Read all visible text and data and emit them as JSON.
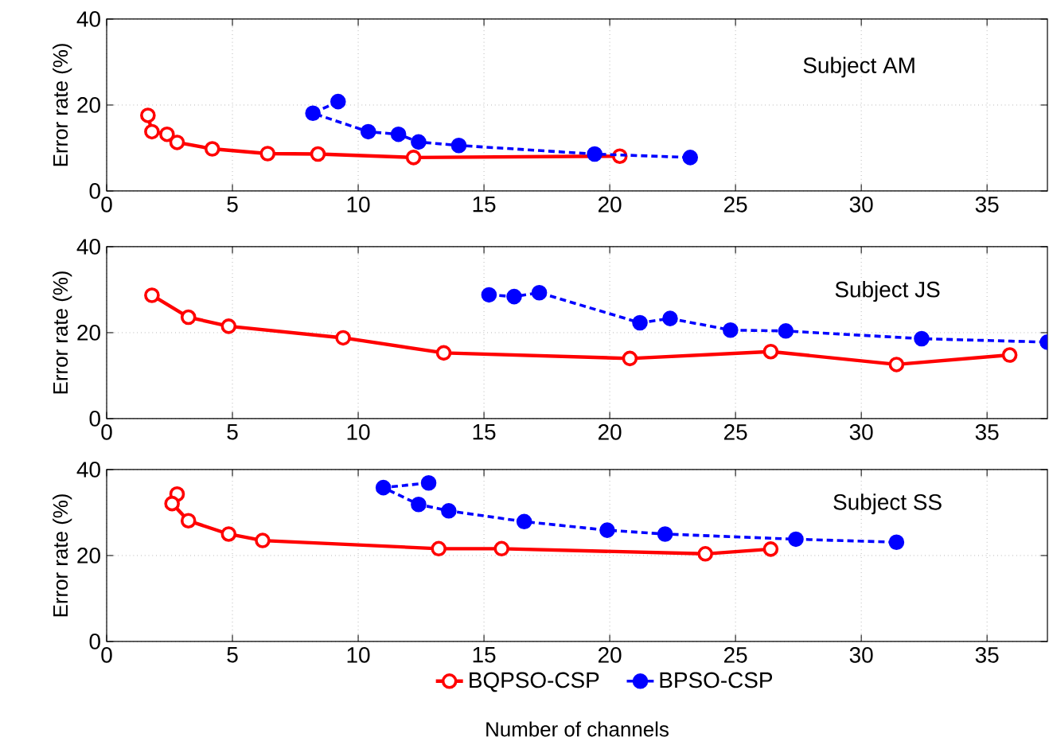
{
  "chart_data": [
    {
      "type": "line",
      "ylabel": "Error rate (%)",
      "annotations": [
        "Subject AM"
      ],
      "xlim": [
        0,
        37.4
      ],
      "ylim": [
        0,
        40
      ],
      "xticks": [
        0,
        5,
        10,
        15,
        20,
        25,
        30,
        35
      ],
      "yticks": [
        0,
        20,
        40
      ],
      "grid": true,
      "marker": "circle",
      "series": [
        {
          "color": "#ff0000",
          "line_style": "solid",
          "x": [
            1.64,
            1.8,
            2.4,
            2.8,
            4.2,
            6.4,
            8.4,
            12.2,
            20.4
          ],
          "values": [
            17.6,
            13.8,
            13.2,
            11.3,
            9.8,
            8.7,
            8.6,
            7.8,
            8.1
          ]
        },
        {
          "color": "#0000ff",
          "line_style": "dashed",
          "x": [
            9.2,
            8.2,
            10.4,
            11.6,
            12.4,
            14.0,
            19.4,
            23.2
          ],
          "values": [
            20.8,
            18.1,
            13.8,
            13.2,
            11.4,
            10.6,
            8.6,
            7.8
          ]
        }
      ]
    },
    {
      "type": "line",
      "ylabel": "Error rate (%)",
      "annotations": [
        "Subject JS"
      ],
      "xlim": [
        0,
        37.4
      ],
      "ylim": [
        0,
        40
      ],
      "xticks": [
        0,
        5,
        10,
        15,
        20,
        25,
        30,
        35
      ],
      "yticks": [
        0,
        20,
        40
      ],
      "grid": true,
      "marker": "circle",
      "series": [
        {
          "color": "#ff0000",
          "line_style": "solid",
          "x": [
            1.8,
            3.25,
            4.85,
            9.4,
            13.4,
            20.8,
            26.4,
            31.4,
            35.9
          ],
          "values": [
            28.7,
            23.6,
            21.5,
            18.8,
            15.3,
            14.0,
            15.6,
            12.6,
            14.8
          ]
        },
        {
          "color": "#0000ff",
          "line_style": "dashed",
          "x": [
            15.2,
            16.2,
            17.2,
            21.2,
            22.4,
            24.8,
            27.0,
            32.4,
            37.4
          ],
          "values": [
            28.8,
            28.4,
            29.3,
            22.3,
            23.3,
            20.6,
            20.4,
            18.6,
            17.8
          ]
        }
      ]
    },
    {
      "type": "line",
      "xlabel": "Number of channels",
      "ylabel": "Error rate (%)",
      "annotations": [
        "Subject SS"
      ],
      "xlim": [
        0,
        37.4
      ],
      "ylim": [
        0,
        40
      ],
      "xticks": [
        0,
        5,
        10,
        15,
        20,
        25,
        30,
        35
      ],
      "yticks": [
        0,
        20,
        40
      ],
      "grid": true,
      "marker": "circle",
      "legend": "bottom",
      "series": [
        {
          "name": "BQPSO-CSP",
          "color": "#ff0000",
          "line_style": "solid",
          "x": [
            2.8,
            2.6,
            3.25,
            4.85,
            6.2,
            13.2,
            15.7,
            23.8,
            26.4
          ],
          "values": [
            34.3,
            32.1,
            28.1,
            25.0,
            23.5,
            21.6,
            21.6,
            20.4,
            21.5
          ]
        },
        {
          "name": "BPSO-CSP",
          "color": "#0000ff",
          "line_style": "dashed",
          "x": [
            12.8,
            11.0,
            12.4,
            13.6,
            16.6,
            19.9,
            22.2,
            27.4,
            31.4
          ],
          "values": [
            36.9,
            35.8,
            31.9,
            30.4,
            27.9,
            25.9,
            25.0,
            23.8,
            23.1
          ]
        }
      ]
    }
  ]
}
